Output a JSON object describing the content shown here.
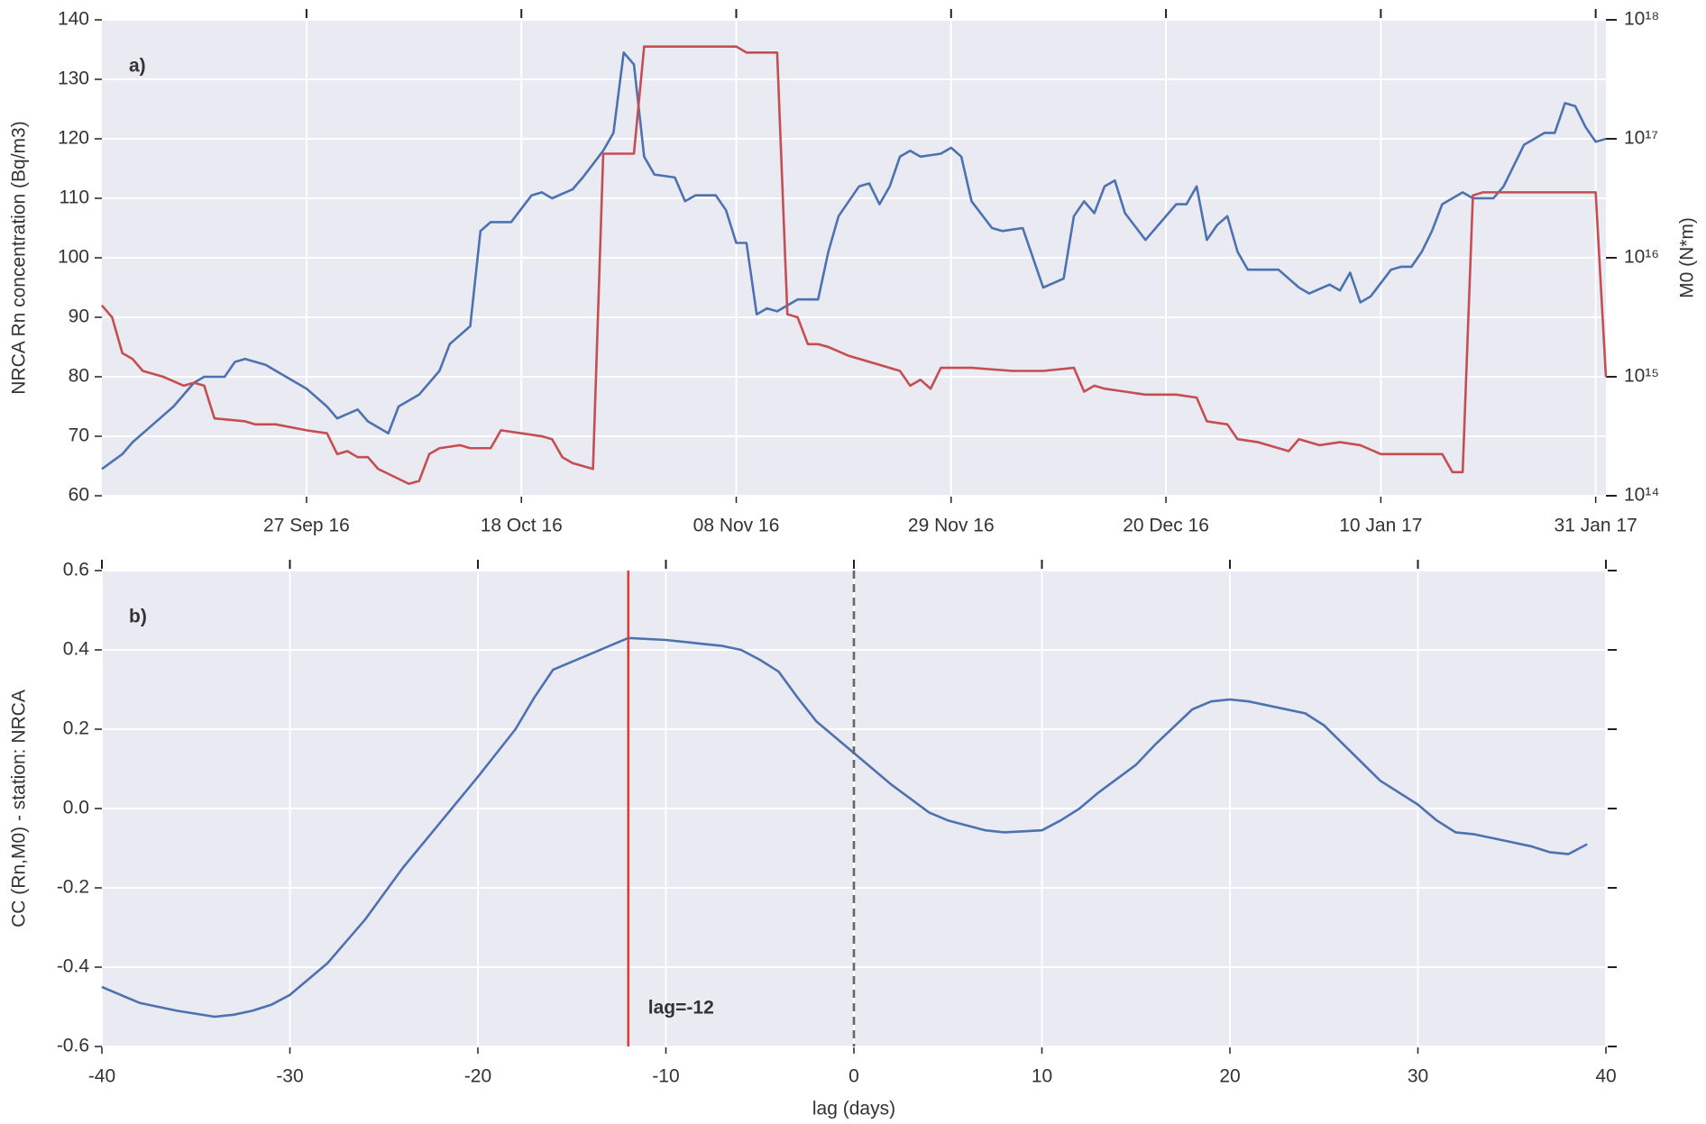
{
  "chart_data": [
    {
      "type": "line",
      "panel_label": "a)",
      "x_type": "date",
      "xlim": [
        "2016-09-07",
        "2017-02-01"
      ],
      "xticks": [
        {
          "value": "2016-09-27",
          "label": "27 Sep 16"
        },
        {
          "value": "2016-10-18",
          "label": "18 Oct 16"
        },
        {
          "value": "2016-11-08",
          "label": "08 Nov 16"
        },
        {
          "value": "2016-11-29",
          "label": "29 Nov 16"
        },
        {
          "value": "2016-12-20",
          "label": "20 Dec 16"
        },
        {
          "value": "2017-01-10",
          "label": "10 Jan 17"
        },
        {
          "value": "2017-01-31",
          "label": "31 Jan 17"
        }
      ],
      "ylabel": "NRCA Rn concentration (Bq/m3)",
      "ylabel_color": "#4c72b0",
      "ylim": [
        60,
        140
      ],
      "yticks": [
        60,
        70,
        80,
        90,
        100,
        110,
        120,
        130,
        140
      ],
      "y2label": "M0 (N*m)",
      "y2label_color": "#c44e52",
      "y2scale": "log",
      "y2lim": [
        100000000000000.0,
        1e+18
      ],
      "y2ticks": [
        {
          "value": 100000000000000.0,
          "label": "10¹⁴"
        },
        {
          "value": 1000000000000000.0,
          "label": "10¹⁵"
        },
        {
          "value": 1e+16,
          "label": "10¹⁶"
        },
        {
          "value": 1e+17,
          "label": "10¹⁷"
        },
        {
          "value": 1e+18,
          "label": "10¹⁸"
        }
      ],
      "grid": true,
      "series": [
        {
          "color": "#4c72b0",
          "x": [
            "2016-09-07",
            "2016-09-09",
            "2016-09-10",
            "2016-09-12",
            "2016-09-14",
            "2016-09-16",
            "2016-09-17",
            "2016-09-19",
            "2016-09-20",
            "2016-09-21",
            "2016-09-23",
            "2016-09-25",
            "2016-09-27",
            "2016-09-29",
            "2016-09-30",
            "2016-10-02",
            "2016-10-03",
            "2016-10-05",
            "2016-10-06",
            "2016-10-08",
            "2016-10-10",
            "2016-10-11",
            "2016-10-13",
            "2016-10-14",
            "2016-10-15",
            "2016-10-17",
            "2016-10-19",
            "2016-10-20",
            "2016-10-21",
            "2016-10-23",
            "2016-10-24",
            "2016-10-26",
            "2016-10-27",
            "2016-10-28",
            "2016-10-29",
            "2016-10-30",
            "2016-10-31",
            "2016-11-02",
            "2016-11-03",
            "2016-11-04",
            "2016-11-06",
            "2016-11-07",
            "2016-11-08",
            "2016-11-09",
            "2016-11-10",
            "2016-11-11",
            "2016-11-12",
            "2016-11-14",
            "2016-11-16",
            "2016-11-17",
            "2016-11-18",
            "2016-11-20",
            "2016-11-21",
            "2016-11-22",
            "2016-11-23",
            "2016-11-24",
            "2016-11-25",
            "2016-11-26",
            "2016-11-28",
            "2016-11-29",
            "2016-11-30",
            "2016-12-01",
            "2016-12-03",
            "2016-12-04",
            "2016-12-06",
            "2016-12-08",
            "2016-12-10",
            "2016-12-11",
            "2016-12-12",
            "2016-12-13",
            "2016-12-14",
            "2016-12-15",
            "2016-12-16",
            "2016-12-18",
            "2016-12-19",
            "2016-12-21",
            "2016-12-22",
            "2016-12-23",
            "2016-12-24",
            "2016-12-25",
            "2016-12-26",
            "2016-12-27",
            "2016-12-28",
            "2016-12-31",
            "2017-01-02",
            "2017-01-03",
            "2017-01-05",
            "2017-01-06",
            "2017-01-07",
            "2017-01-08",
            "2017-01-09",
            "2017-01-11",
            "2017-01-12",
            "2017-01-13",
            "2017-01-14",
            "2017-01-15",
            "2017-01-16",
            "2017-01-18",
            "2017-01-19",
            "2017-01-21",
            "2017-01-22",
            "2017-01-24",
            "2017-01-26",
            "2017-01-27",
            "2017-01-28",
            "2017-01-29",
            "2017-01-30",
            "2017-01-31",
            "2017-02-01"
          ],
          "values": [
            64.5,
            67,
            69,
            72,
            75,
            79,
            80,
            80,
            82.5,
            83,
            82,
            80,
            78,
            75,
            73,
            74.5,
            72.5,
            70.5,
            75,
            77,
            81,
            85.5,
            88.5,
            104.5,
            106,
            106,
            110.5,
            111,
            110,
            111.5,
            113.5,
            118,
            121,
            134.5,
            132.5,
            117,
            114,
            113.5,
            109.5,
            110.5,
            110.5,
            108,
            102.5,
            102.5,
            90.5,
            91.5,
            91,
            93,
            93,
            101,
            107,
            112,
            112.5,
            109,
            112,
            117,
            118,
            117,
            117.5,
            118.5,
            117,
            109.5,
            105,
            104.5,
            105,
            95,
            96.5,
            107,
            109.5,
            107.5,
            112,
            113,
            107.5,
            103,
            105,
            109,
            109,
            112,
            103,
            105.5,
            107,
            101,
            98,
            98,
            95,
            94,
            95.5,
            94.5,
            97.5,
            92.5,
            93.5,
            98,
            98.5,
            98.5,
            101,
            104.5,
            109,
            111,
            110,
            110,
            112,
            119,
            121,
            121,
            126,
            125.5,
            122,
            119.5,
            120
          ]
        },
        {
          "color": "#c44e52",
          "axis": "y2",
          "x": [
            "2016-09-07",
            "2016-09-08",
            "2016-09-09",
            "2016-09-10",
            "2016-09-11",
            "2016-09-13",
            "2016-09-15",
            "2016-09-16",
            "2016-09-17",
            "2016-09-18",
            "2016-09-21",
            "2016-09-22",
            "2016-09-24",
            "2016-09-27",
            "2016-09-29",
            "2016-09-30",
            "2016-10-01",
            "2016-10-02",
            "2016-10-03",
            "2016-10-04",
            "2016-10-07",
            "2016-10-08",
            "2016-10-09",
            "2016-10-10",
            "2016-10-12",
            "2016-10-13",
            "2016-10-15",
            "2016-10-16",
            "2016-10-18",
            "2016-10-20",
            "2016-10-21",
            "2016-10-22",
            "2016-10-23",
            "2016-10-25",
            "2016-10-26",
            "2016-10-29",
            "2016-10-30",
            "2016-11-08",
            "2016-11-09",
            "2016-11-12",
            "2016-11-13",
            "2016-11-14",
            "2016-11-15",
            "2016-11-16",
            "2016-11-17",
            "2016-11-19",
            "2016-11-22",
            "2016-11-24",
            "2016-11-25",
            "2016-11-26",
            "2016-11-27",
            "2016-11-28",
            "2016-12-01",
            "2016-12-05",
            "2016-12-08",
            "2016-12-11",
            "2016-12-12",
            "2016-12-13",
            "2016-12-14",
            "2016-12-16",
            "2016-12-18",
            "2016-12-21",
            "2016-12-23",
            "2016-12-24",
            "2016-12-26",
            "2016-12-27",
            "2016-12-29",
            "2017-01-01",
            "2017-01-02",
            "2017-01-04",
            "2017-01-06",
            "2017-01-08",
            "2017-01-10",
            "2017-01-12",
            "2017-01-16",
            "2017-01-17",
            "2017-01-18",
            "2017-01-19",
            "2017-01-20",
            "2017-01-31",
            "2017-02-01"
          ],
          "values": [
            3980000000000000.0,
            3160000000000000.0,
            1580000000000000.0,
            1410000000000000.0,
            1120000000000000.0,
            1000000000000000.0,
            841000000000000.0,
            891000000000000.0,
            841000000000000.0,
            447000000000000.0,
            422000000000000.0,
            398000000000000.0,
            398000000000000.0,
            355000000000000.0,
            335000000000000.0,
            224000000000000.0,
            237000000000000.0,
            211000000000000.0,
            211000000000000.0,
            168000000000000.0,
            126000000000000.0,
            133000000000000.0,
            224000000000000.0,
            251000000000000.0,
            266000000000000.0,
            251000000000000.0,
            251000000000000.0,
            355000000000000.0,
            335000000000000.0,
            316000000000000.0,
            299000000000000.0,
            211000000000000.0,
            188000000000000.0,
            168000000000000.0,
            7.5e+16,
            7.5e+16,
            5.96e+17,
            5.96e+17,
            5.31e+17,
            5.31e+17,
            3350000000000000.0,
            3160000000000000.0,
            1880000000000000.0,
            1880000000000000.0,
            1780000000000000.0,
            1500000000000000.0,
            1260000000000000.0,
            1120000000000000.0,
            841000000000000.0,
            944000000000000.0,
            794000000000000.0,
            1190000000000000.0,
            1190000000000000.0,
            1120000000000000.0,
            1120000000000000.0,
            1190000000000000.0,
            750000000000000.0,
            841000000000000.0,
            794000000000000.0,
            750000000000000.0,
            708000000000000.0,
            708000000000000.0,
            668000000000000.0,
            422000000000000.0,
            398000000000000.0,
            299000000000000.0,
            282000000000000.0,
            237000000000000.0,
            299000000000000.0,
            266000000000000.0,
            282000000000000.0,
            266000000000000.0,
            224000000000000.0,
            224000000000000.0,
            224000000000000.0,
            158000000000000.0,
            158000000000000.0,
            3.35e+16,
            3.55e+16,
            3.55e+16,
            1000000000000000.0
          ]
        }
      ]
    },
    {
      "type": "line",
      "panel_label": "b)",
      "x_type": "number",
      "xlabel": "lag (days)",
      "ylabel": "CC (Rn,M0) - station: NRCA",
      "xlim": [
        -40,
        40
      ],
      "xticks": [
        -40,
        -30,
        -20,
        -10,
        0,
        10,
        20,
        30,
        40
      ],
      "ylim": [
        -0.6,
        0.6
      ],
      "yticks": [
        -0.6,
        -0.4,
        -0.2,
        {
          "value": 0,
          "label": "0.0"
        },
        0.2,
        0.4,
        0.6
      ],
      "grid": true,
      "series": [
        {
          "color": "#4c72b0",
          "x": [
            -40,
            -38,
            -36,
            -34,
            -33,
            -32,
            -31,
            -30,
            -28,
            -26,
            -24,
            -22,
            -20,
            -18,
            -17,
            -16,
            -15,
            -14,
            -13,
            -12,
            -10,
            -8,
            -7,
            -6,
            -5,
            -4,
            -3,
            -2,
            0,
            1,
            2,
            4,
            5,
            7,
            8,
            10,
            11,
            12,
            13,
            15,
            16,
            18,
            19,
            20,
            21,
            24,
            25,
            28,
            30,
            31,
            32,
            33,
            35,
            36,
            37,
            38,
            39
          ],
          "values": [
            -0.45,
            -0.49,
            -0.51,
            -0.525,
            -0.52,
            -0.51,
            -0.495,
            -0.47,
            -0.39,
            -0.28,
            -0.15,
            -0.035,
            0.08,
            0.2,
            0.28,
            0.35,
            0.37,
            0.39,
            0.41,
            0.43,
            0.425,
            0.415,
            0.41,
            0.4,
            0.375,
            0.345,
            0.28,
            0.22,
            0.14,
            0.1,
            0.06,
            -0.01,
            -0.03,
            -0.055,
            -0.06,
            -0.055,
            -0.03,
            0,
            0.04,
            0.11,
            0.16,
            0.25,
            0.27,
            0.275,
            0.27,
            0.24,
            0.21,
            0.07,
            0.01,
            -0.03,
            -0.06,
            -0.065,
            -0.085,
            -0.095,
            -0.11,
            -0.115,
            -0.09
          ]
        }
      ],
      "vlines": [
        {
          "x": -12,
          "color": "#d9403a",
          "label": "lag=-12"
        },
        {
          "x": 0,
          "color": "#666666",
          "dashed": true
        }
      ]
    }
  ]
}
